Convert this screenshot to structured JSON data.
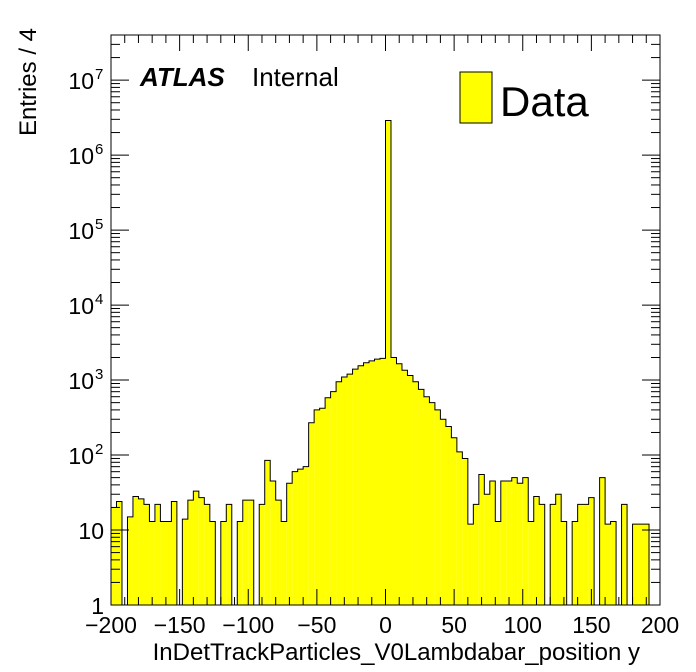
{
  "chart_data": {
    "type": "histogram",
    "xlabel": "InDetTrackParticles_V0Lambdabar_position y",
    "ylabel": "Entries / 4",
    "x_range": [
      -200,
      200
    ],
    "y_range": [
      1,
      40000000
    ],
    "y_scale": "log",
    "bin_width": 4,
    "x_ticks": [
      -200,
      -150,
      -100,
      -50,
      0,
      50,
      100,
      150,
      200
    ],
    "x_tick_labels": [
      "−200",
      "−150",
      "−100",
      "−50",
      "0",
      "50",
      "100",
      "150",
      "200"
    ],
    "y_ticks": [
      1,
      10,
      100,
      1000,
      10000,
      100000,
      1000000,
      10000000
    ],
    "y_tick_labels": [
      {
        "base": "1",
        "exp": ""
      },
      {
        "base": "10",
        "exp": ""
      },
      {
        "base": "10",
        "exp": "2"
      },
      {
        "base": "10",
        "exp": "3"
      },
      {
        "base": "10",
        "exp": "4"
      },
      {
        "base": "10",
        "exp": "5"
      },
      {
        "base": "10",
        "exp": "6"
      },
      {
        "base": "10",
        "exp": "7"
      }
    ],
    "series": [
      {
        "name": "Data",
        "color": "#ffff00",
        "edgecolor": "#000000",
        "bins": [
          {
            "x": -200,
            "y": 20
          },
          {
            "x": -196,
            "y": 24
          },
          {
            "x": -192,
            "y": 0
          },
          {
            "x": -188,
            "y": 15
          },
          {
            "x": -184,
            "y": 28
          },
          {
            "x": -180,
            "y": 26
          },
          {
            "x": -176,
            "y": 22
          },
          {
            "x": -172,
            "y": 13
          },
          {
            "x": -168,
            "y": 22
          },
          {
            "x": -164,
            "y": 13
          },
          {
            "x": -160,
            "y": 13
          },
          {
            "x": -156,
            "y": 24
          },
          {
            "x": -152,
            "y": 0
          },
          {
            "x": -148,
            "y": 14
          },
          {
            "x": -144,
            "y": 25
          },
          {
            "x": -140,
            "y": 33
          },
          {
            "x": -136,
            "y": 27
          },
          {
            "x": -132,
            "y": 22
          },
          {
            "x": -128,
            "y": 13
          },
          {
            "x": -124,
            "y": 0
          },
          {
            "x": -120,
            "y": 13
          },
          {
            "x": -116,
            "y": 22
          },
          {
            "x": -112,
            "y": 0
          },
          {
            "x": -108,
            "y": 13
          },
          {
            "x": -104,
            "y": 25
          },
          {
            "x": -100,
            "y": 25
          },
          {
            "x": -96,
            "y": 0
          },
          {
            "x": -92,
            "y": 22
          },
          {
            "x": -88,
            "y": 85
          },
          {
            "x": -84,
            "y": 45
          },
          {
            "x": -80,
            "y": 25
          },
          {
            "x": -76,
            "y": 13
          },
          {
            "x": -72,
            "y": 42
          },
          {
            "x": -68,
            "y": 60
          },
          {
            "x": -64,
            "y": 65
          },
          {
            "x": -60,
            "y": 70
          },
          {
            "x": -56,
            "y": 270
          },
          {
            "x": -52,
            "y": 400
          },
          {
            "x": -48,
            "y": 420
          },
          {
            "x": -44,
            "y": 580
          },
          {
            "x": -40,
            "y": 700
          },
          {
            "x": -36,
            "y": 950
          },
          {
            "x": -32,
            "y": 1100
          },
          {
            "x": -28,
            "y": 1200
          },
          {
            "x": -24,
            "y": 1400
          },
          {
            "x": -20,
            "y": 1550
          },
          {
            "x": -16,
            "y": 1700
          },
          {
            "x": -12,
            "y": 1800
          },
          {
            "x": -8,
            "y": 1900
          },
          {
            "x": -4,
            "y": 1950
          },
          {
            "x": 0,
            "y": 2900000
          },
          {
            "x": 4,
            "y": 2000
          },
          {
            "x": 8,
            "y": 1650
          },
          {
            "x": 12,
            "y": 1350
          },
          {
            "x": 16,
            "y": 1150
          },
          {
            "x": 20,
            "y": 950
          },
          {
            "x": 24,
            "y": 750
          },
          {
            "x": 28,
            "y": 600
          },
          {
            "x": 32,
            "y": 500
          },
          {
            "x": 36,
            "y": 400
          },
          {
            "x": 40,
            "y": 300
          },
          {
            "x": 44,
            "y": 240
          },
          {
            "x": 48,
            "y": 170
          },
          {
            "x": 52,
            "y": 110
          },
          {
            "x": 56,
            "y": 90
          },
          {
            "x": 60,
            "y": 12
          },
          {
            "x": 64,
            "y": 22
          },
          {
            "x": 68,
            "y": 55
          },
          {
            "x": 72,
            "y": 30
          },
          {
            "x": 76,
            "y": 45
          },
          {
            "x": 80,
            "y": 13
          },
          {
            "x": 84,
            "y": 45
          },
          {
            "x": 88,
            "y": 45
          },
          {
            "x": 92,
            "y": 50
          },
          {
            "x": 96,
            "y": 42
          },
          {
            "x": 100,
            "y": 50
          },
          {
            "x": 104,
            "y": 13
          },
          {
            "x": 108,
            "y": 28
          },
          {
            "x": 112,
            "y": 22
          },
          {
            "x": 116,
            "y": 0
          },
          {
            "x": 120,
            "y": 22
          },
          {
            "x": 124,
            "y": 30
          },
          {
            "x": 128,
            "y": 13
          },
          {
            "x": 132,
            "y": 0
          },
          {
            "x": 136,
            "y": 13
          },
          {
            "x": 140,
            "y": 22
          },
          {
            "x": 144,
            "y": 22
          },
          {
            "x": 148,
            "y": 27
          },
          {
            "x": 152,
            "y": 0
          },
          {
            "x": 156,
            "y": 50
          },
          {
            "x": 160,
            "y": 12
          },
          {
            "x": 164,
            "y": 13
          },
          {
            "x": 168,
            "y": 0
          },
          {
            "x": 172,
            "y": 22
          },
          {
            "x": 176,
            "y": 0
          },
          {
            "x": 180,
            "y": 12
          },
          {
            "x": 184,
            "y": 12
          },
          {
            "x": 188,
            "y": 12
          },
          {
            "x": 192,
            "y": 0
          },
          {
            "x": 196,
            "y": 0
          }
        ]
      }
    ],
    "legend": {
      "label": "Data",
      "position": "top-right"
    },
    "annotations": {
      "experiment": "ATLAS",
      "status": "Internal"
    }
  }
}
